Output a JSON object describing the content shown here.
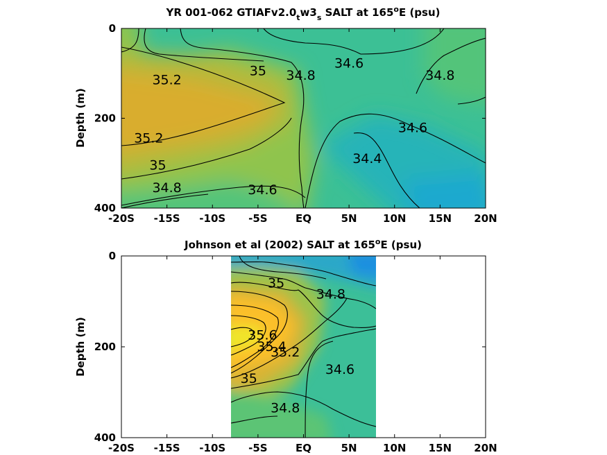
{
  "chart_data": [
    {
      "type": "heatmap",
      "title": "YR 001-062 GTIAFv2.0",
      "title_parts": [
        "YR 001-062 GTIAFv2.0",
        "t",
        "w3",
        "s",
        " SALT at 165",
        "o",
        "E (psu)"
      ],
      "xlabel": "",
      "ylabel": "Depth (m)",
      "x_ticks": [
        "-20S",
        "-15S",
        "-10S",
        "-5S",
        "EQ",
        "5N",
        "10N",
        "15N",
        "20N"
      ],
      "y_ticks": [
        "0",
        "200",
        "400"
      ],
      "xlim": [
        -20,
        20
      ],
      "ylim": [
        0,
        400
      ],
      "y_reversed": true,
      "data_x_range": [
        -20,
        20
      ],
      "colors": {
        "35.4": "#d9ad2e",
        "35.2": "#b5b93a",
        "35.0": "#8fc44e",
        "34.8": "#52c47a",
        "34.6": "#3cc095",
        "34.4": "#26b4b8",
        "34.3": "#1da9cf"
      },
      "contour_labels": [
        {
          "text": "35.2",
          "x": -15,
          "y": 115
        },
        {
          "text": "35",
          "x": -5,
          "y": 95
        },
        {
          "text": "34.8",
          "x": -0.3,
          "y": 105
        },
        {
          "text": "34.6",
          "x": 5,
          "y": 78
        },
        {
          "text": "34.8",
          "x": 15,
          "y": 105
        },
        {
          "text": "35.2",
          "x": -17,
          "y": 245
        },
        {
          "text": "35",
          "x": -16,
          "y": 305
        },
        {
          "text": "34.6",
          "x": 12,
          "y": 222
        },
        {
          "text": "34.4",
          "x": 7,
          "y": 290
        },
        {
          "text": "34.8",
          "x": -15,
          "y": 355
        },
        {
          "text": "34.6",
          "x": -4.5,
          "y": 360
        }
      ]
    },
    {
      "type": "heatmap",
      "title": "Johnson et al (2002) SALT at 165",
      "title_parts": [
        "Johnson et al (2002) SALT at 165",
        "o",
        "E (psu)"
      ],
      "xlabel": "",
      "ylabel": "Depth (m)",
      "x_ticks": [
        "-20S",
        "-15S",
        "-10S",
        "-5S",
        "EQ",
        "5N",
        "10N",
        "15N",
        "20N"
      ],
      "y_ticks": [
        "0",
        "200",
        "400"
      ],
      "xlim": [
        -20,
        20
      ],
      "ylim": [
        0,
        400
      ],
      "y_reversed": true,
      "data_x_range": [
        -8,
        8
      ],
      "colors": {
        "35.6": "#f0e62a",
        "35.4": "#fbbf2c",
        "35.2": "#d8b436",
        "35.0": "#9cc24c",
        "34.8": "#5cc474",
        "34.6": "#3cbf98",
        "34.4": "#2aa7c9",
        "34.2": "#1f8fe0"
      },
      "contour_labels": [
        {
          "text": "35",
          "x": -3,
          "y": 60
        },
        {
          "text": "34.8",
          "x": 3,
          "y": 85
        },
        {
          "text": "35.6",
          "x": -4.5,
          "y": 175
        },
        {
          "text": "35.4",
          "x": -3.5,
          "y": 200
        },
        {
          "text": "35.2",
          "x": -2,
          "y": 212
        },
        {
          "text": "35",
          "x": -6,
          "y": 270
        },
        {
          "text": "34.6",
          "x": 4,
          "y": 250
        },
        {
          "text": "34.8",
          "x": -2,
          "y": 335
        }
      ]
    }
  ]
}
